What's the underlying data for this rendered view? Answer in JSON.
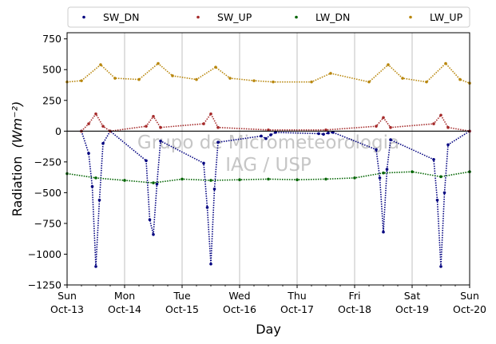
{
  "chart_data": {
    "type": "scatter",
    "xlabel": "Day",
    "ylabel": "Radiation",
    "ylabel_unit": "(Wm⁻²)",
    "ylim": [
      -1250,
      800
    ],
    "yticks": [
      750,
      500,
      250,
      0,
      -250,
      -500,
      -750,
      -1000,
      -1250
    ],
    "ytick_labels": [
      "750",
      "500",
      "250",
      "0",
      "−250",
      "−500",
      "−750",
      "−1000",
      "−1250"
    ],
    "xlim": [
      "2019-10-13",
      "2019-10-20"
    ],
    "xticks": [
      {
        "date": "2019-10-13",
        "line1": "Sun",
        "line2": "Oct-13"
      },
      {
        "date": "2019-10-14",
        "line1": "Mon",
        "line2": "Oct-14"
      },
      {
        "date": "2019-10-15",
        "line1": "Tue",
        "line2": "Oct-15"
      },
      {
        "date": "2019-10-16",
        "line1": "Wed",
        "line2": "Oct-16"
      },
      {
        "date": "2019-10-17",
        "line1": "Thu",
        "line2": "Oct-17"
      },
      {
        "date": "2019-10-18",
        "line1": "Fri",
        "line2": "Oct-18"
      },
      {
        "date": "2019-10-19",
        "line1": "Sat",
        "line2": "Oct-19"
      },
      {
        "date": "2019-10-20",
        "line1": "Sun",
        "line2": "Oct-20"
      }
    ],
    "grid": "vertical",
    "zero_line": true,
    "legend_position": "top",
    "watermark": [
      "Grupo de Micrometeorologia",
      "IAG / USP"
    ],
    "series": [
      {
        "name": "SW_DN",
        "color": "#00007f",
        "x": [
          "2019-10-13 06:00",
          "2019-10-13 09:00",
          "2019-10-13 10:30",
          "2019-10-13 12:00",
          "2019-10-13 13:30",
          "2019-10-13 15:00",
          "2019-10-13 18:00",
          "2019-10-14 09:00",
          "2019-10-14 10:30",
          "2019-10-14 12:00",
          "2019-10-14 13:30",
          "2019-10-14 15:00",
          "2019-10-15 09:00",
          "2019-10-15 10:30",
          "2019-10-15 12:00",
          "2019-10-15 13:30",
          "2019-10-15 15:00",
          "2019-10-16 09:00",
          "2019-10-16 11:00",
          "2019-10-16 13:00",
          "2019-10-16 15:00",
          "2019-10-17 09:00",
          "2019-10-17 11:00",
          "2019-10-17 13:00",
          "2019-10-17 15:00",
          "2019-10-18 09:00",
          "2019-10-18 10:30",
          "2019-10-18 12:00",
          "2019-10-18 13:30",
          "2019-10-18 15:00",
          "2019-10-19 09:00",
          "2019-10-19 10:30",
          "2019-10-19 12:00",
          "2019-10-19 13:30",
          "2019-10-19 15:00",
          "2019-10-20 00:00"
        ],
        "y": [
          0,
          -180,
          -450,
          -1100,
          -560,
          -100,
          0,
          -240,
          -720,
          -840,
          -430,
          -80,
          -260,
          -620,
          -1080,
          -470,
          -90,
          -40,
          -60,
          -30,
          -10,
          -20,
          -25,
          -15,
          -10,
          -150,
          -380,
          -820,
          -310,
          -70,
          -230,
          -560,
          -1100,
          -500,
          -110,
          0
        ]
      },
      {
        "name": "SW_UP",
        "color": "#a52a2a",
        "x": [
          "2019-10-13 06:00",
          "2019-10-13 09:00",
          "2019-10-13 12:00",
          "2019-10-13 15:00",
          "2019-10-13 18:00",
          "2019-10-14 09:00",
          "2019-10-14 12:00",
          "2019-10-14 15:00",
          "2019-10-15 09:00",
          "2019-10-15 12:00",
          "2019-10-15 15:00",
          "2019-10-16 12:00",
          "2019-10-17 12:00",
          "2019-10-18 09:00",
          "2019-10-18 12:00",
          "2019-10-18 15:00",
          "2019-10-19 09:00",
          "2019-10-19 12:00",
          "2019-10-19 15:00",
          "2019-10-20 00:00"
        ],
        "y": [
          0,
          60,
          140,
          40,
          0,
          40,
          120,
          30,
          60,
          140,
          30,
          10,
          10,
          40,
          110,
          30,
          60,
          130,
          30,
          0
        ]
      },
      {
        "name": "LW_DN",
        "color": "#006400",
        "x": [
          "2019-10-13 00:00",
          "2019-10-13 12:00",
          "2019-10-14 00:00",
          "2019-10-14 12:00",
          "2019-10-15 00:00",
          "2019-10-15 12:00",
          "2019-10-16 00:00",
          "2019-10-16 12:00",
          "2019-10-17 00:00",
          "2019-10-17 12:00",
          "2019-10-18 00:00",
          "2019-10-18 12:00",
          "2019-10-19 00:00",
          "2019-10-19 12:00",
          "2019-10-20 00:00"
        ],
        "y": [
          -345,
          -380,
          -400,
          -420,
          -390,
          -400,
          -395,
          -390,
          -395,
          -390,
          -380,
          -340,
          -330,
          -370,
          -330
        ]
      },
      {
        "name": "LW_UP",
        "color": "#b8860b",
        "x": [
          "2019-10-13 00:00",
          "2019-10-13 06:00",
          "2019-10-13 14:00",
          "2019-10-13 20:00",
          "2019-10-14 06:00",
          "2019-10-14 14:00",
          "2019-10-14 20:00",
          "2019-10-15 06:00",
          "2019-10-15 14:00",
          "2019-10-15 20:00",
          "2019-10-16 06:00",
          "2019-10-16 14:00",
          "2019-10-17 06:00",
          "2019-10-17 14:00",
          "2019-10-18 06:00",
          "2019-10-18 14:00",
          "2019-10-18 20:00",
          "2019-10-19 06:00",
          "2019-10-19 14:00",
          "2019-10-19 20:00",
          "2019-10-20 00:00"
        ],
        "y": [
          400,
          410,
          540,
          430,
          420,
          550,
          450,
          420,
          520,
          430,
          410,
          400,
          400,
          470,
          400,
          540,
          430,
          400,
          550,
          420,
          390
        ]
      }
    ]
  }
}
